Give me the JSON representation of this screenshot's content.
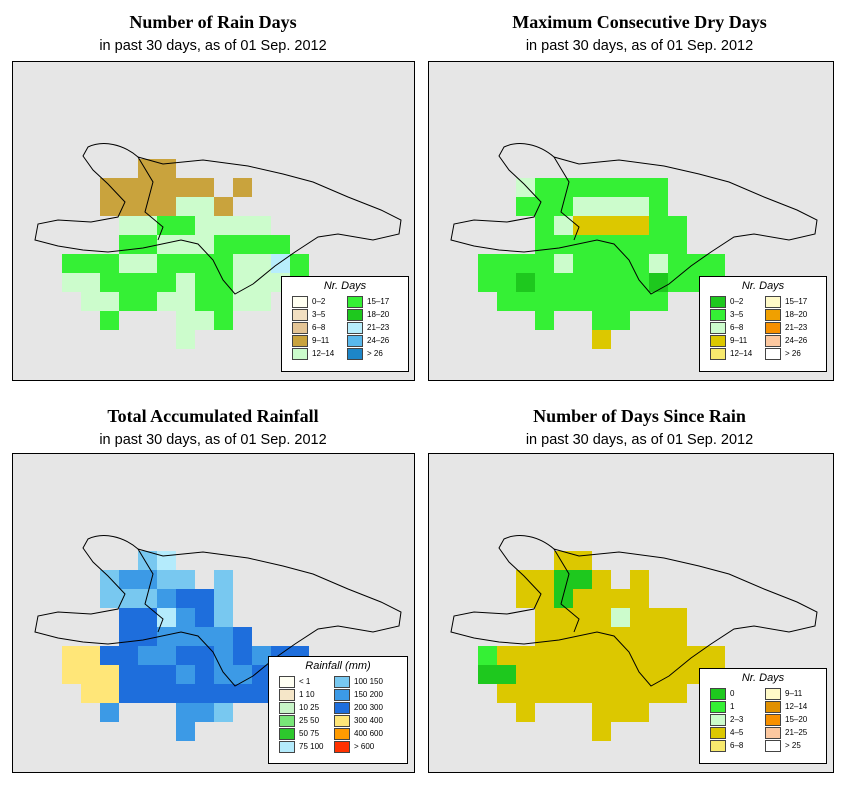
{
  "panels": [
    {
      "id": "rain_days",
      "title": "Number of Rain Days",
      "subtitle": "in past 30 days, as of  01 Sep. 2012",
      "legend_title": "Nr. Days",
      "legend": [
        {
          "label": "0–2",
          "color": "#fffff2"
        },
        {
          "label": "3–5",
          "color": "#f2dfc1"
        },
        {
          "label": "6–8",
          "color": "#e4c596"
        },
        {
          "label": "9–11",
          "color": "#c9a33d"
        },
        {
          "label": "12–14",
          "color": "#ccfccc"
        },
        {
          "label": "15–17",
          "color": "#35f035"
        },
        {
          "label": "18–20",
          "color": "#1ec81e"
        },
        {
          "label": "21–23",
          "color": "#b8eefc"
        },
        {
          "label": "24–26",
          "color": "#59b8ec"
        },
        {
          "label": "> 26",
          "color": "#1d86c8"
        }
      ]
    },
    {
      "id": "dry_days",
      "title": "Maximum Consecutive Dry Days",
      "subtitle": "in past 30 days, as of  01 Sep. 2012",
      "legend_title": "Nr. Days",
      "legend": [
        {
          "label": "0–2",
          "color": "#1ec81e"
        },
        {
          "label": "3–5",
          "color": "#35f035"
        },
        {
          "label": "6–8",
          "color": "#ccfccc"
        },
        {
          "label": "9–11",
          "color": "#dcc800"
        },
        {
          "label": "12–14",
          "color": "#f8ea6e"
        },
        {
          "label": "15–17",
          "color": "#fffac8"
        },
        {
          "label": "18–20",
          "color": "#f0a000"
        },
        {
          "label": "21–23",
          "color": "#f79000"
        },
        {
          "label": "24–26",
          "color": "#fcc8a0"
        },
        {
          "label": "> 26",
          "color": "#ffffff"
        }
      ]
    },
    {
      "id": "rainfall",
      "title": "Total Accumulated Rainfall",
      "subtitle": "in past 30 days, as of  01 Sep. 2012",
      "legend_title": "Rainfall (mm)",
      "legend": [
        {
          "label": "< 1",
          "color": "#fffff2"
        },
        {
          "label": "1   10",
          "color": "#f5e6c8"
        },
        {
          "label": "10   25",
          "color": "#c8f5c8"
        },
        {
          "label": "25   50",
          "color": "#78e678"
        },
        {
          "label": "50   75",
          "color": "#2dc82d"
        },
        {
          "label": "75   100",
          "color": "#b4ebfc"
        },
        {
          "label": "100  150",
          "color": "#78c8f0"
        },
        {
          "label": "150  200",
          "color": "#3c9ae6"
        },
        {
          "label": "200  300",
          "color": "#1e6edc"
        },
        {
          "label": "300  400",
          "color": "#ffe678"
        },
        {
          "label": "400  600",
          "color": "#ff9b00"
        },
        {
          "label": "> 600",
          "color": "#ff3200"
        }
      ]
    },
    {
      "id": "since_rain",
      "title": "Number of Days Since Rain",
      "subtitle": "in past 30 days, as of  01 Sep. 2012",
      "legend_title": "Nr. Days",
      "legend": [
        {
          "label": "0",
          "color": "#1ec81e"
        },
        {
          "label": "1",
          "color": "#35f035"
        },
        {
          "label": "2–3",
          "color": "#ccfccc"
        },
        {
          "label": "4–5",
          "color": "#dcc800"
        },
        {
          "label": "6–8",
          "color": "#f8ea6e"
        },
        {
          "label": "9–11",
          "color": "#fffac8"
        },
        {
          "label": "12–14",
          "color": "#e09000"
        },
        {
          "label": "15–20",
          "color": "#f79000"
        },
        {
          "label": "21–25",
          "color": "#fcc8a0"
        },
        {
          "label": "> 25",
          "color": "#ffffff"
        }
      ]
    }
  ],
  "grids": {
    "rain_days": [
      "...............",
      "...............",
      "...............",
      ".....33........",
      "...333333.3....",
      "...3333443.....",
      "....44554444...",
      "....554445555..",
      ".5554455554475.",
      ".4455554554445.",
      "..4455445544...",
      "...5...445.....",
      ".......4......."
    ],
    "dry_days": [
      "...............",
      "...............",
      "...............",
      "...............",
      "...21111111....",
      "...11122221....",
      "....12333311...",
      "....11111111...",
      ".1111211112111.",
      ".1101111110111.",
      "..111111111....",
      "....1..11......",
      ".......3......."
    ],
    "rainfall": [
      "...............",
      "...............",
      "...............",
      ".....65........",
      "...67766.6.....",
      "...6667886.....",
      "....885786.....",
      "....8877778....",
      ".9988778878788.",
      ".9998887877888.",
      "..9988888888...",
      "...7...776.....",
      ".......7......."
    ],
    "since_rain": [
      "...............",
      "...............",
      "...............",
      ".....33........",
      "...33003.3.....",
      "...3303333.....",
      "....33332333...",
      "....33333333...",
      ".1333333333333.",
      ".0033333333333.",
      "..3333333333...",
      "...3...333.....",
      ".......3......."
    ]
  }
}
